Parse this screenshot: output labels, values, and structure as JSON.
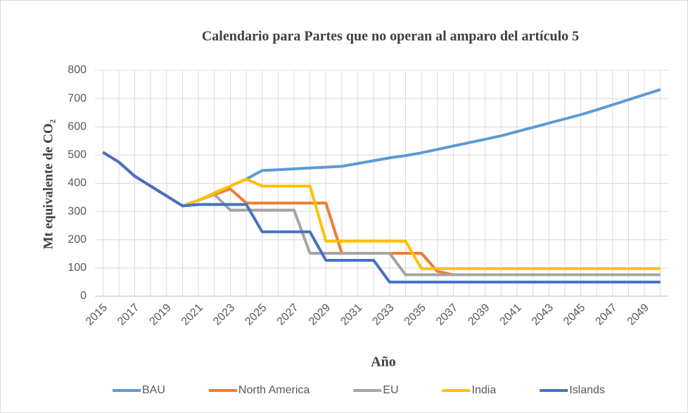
{
  "chart_data": {
    "type": "line",
    "title": "Calendario para Partes que no operan al amparo del artículo 5",
    "x_label": "Año",
    "y_label": "Mt equivalente de CO₂",
    "categories": [
      "2015",
      null,
      "2017",
      null,
      "2019",
      null,
      "2021",
      null,
      "2023",
      null,
      "2025",
      null,
      "2027",
      null,
      "2029",
      null,
      "2031",
      null,
      "2033",
      null,
      "2035",
      null,
      "2037",
      null,
      "2039",
      null,
      "2041",
      null,
      "2043",
      null,
      "2045",
      null,
      "2047",
      null,
      "2049",
      null
    ],
    "series": [
      {
        "name": "BAU",
        "color": "#5b9bd5",
        "values": [
          510,
          475,
          425,
          390,
          355,
          320,
          340,
          365,
          390,
          415,
          445,
          448,
          451,
          454,
          457,
          460,
          470,
          480,
          490,
          498,
          508,
          520,
          532,
          544,
          556,
          568,
          583,
          598,
          613,
          628,
          643,
          660,
          678,
          696,
          714,
          732
        ]
      },
      {
        "name": "North America",
        "color": "#ed7d31",
        "values": [
          510,
          475,
          425,
          390,
          355,
          320,
          340,
          360,
          380,
          330,
          330,
          330,
          330,
          330,
          330,
          152,
          152,
          152,
          152,
          152,
          152,
          88,
          76,
          76,
          76,
          76,
          76,
          76,
          76,
          76,
          76,
          76,
          76,
          76,
          76,
          76
        ]
      },
      {
        "name": "EU",
        "color": "#a5a5a5",
        "values": [
          510,
          475,
          425,
          390,
          355,
          320,
          340,
          360,
          305,
          305,
          305,
          305,
          305,
          152,
          152,
          152,
          152,
          152,
          152,
          76,
          76,
          76,
          76,
          76,
          76,
          76,
          76,
          76,
          76,
          76,
          76,
          76,
          76,
          76,
          76,
          76
        ]
      },
      {
        "name": "India",
        "color": "#ffc000",
        "values": [
          510,
          475,
          425,
          390,
          355,
          320,
          340,
          365,
          390,
          415,
          390,
          390,
          390,
          390,
          195,
          195,
          195,
          195,
          195,
          195,
          98,
          98,
          98,
          98,
          98,
          98,
          98,
          98,
          98,
          98,
          98,
          98,
          98,
          98,
          98,
          98
        ]
      },
      {
        "name": "Islands",
        "color": "#4472c4",
        "values": [
          510,
          475,
          425,
          390,
          355,
          320,
          325,
          325,
          325,
          325,
          228,
          228,
          228,
          228,
          127,
          127,
          127,
          127,
          50,
          50,
          50,
          50,
          50,
          50,
          50,
          50,
          50,
          50,
          50,
          50,
          50,
          50,
          50,
          50,
          50,
          50
        ]
      }
    ],
    "ylim": [
      0,
      800
    ],
    "yticks": [
      0,
      100,
      200,
      300,
      400,
      500,
      600,
      700,
      800
    ],
    "grid": true,
    "legend": "bottom"
  }
}
